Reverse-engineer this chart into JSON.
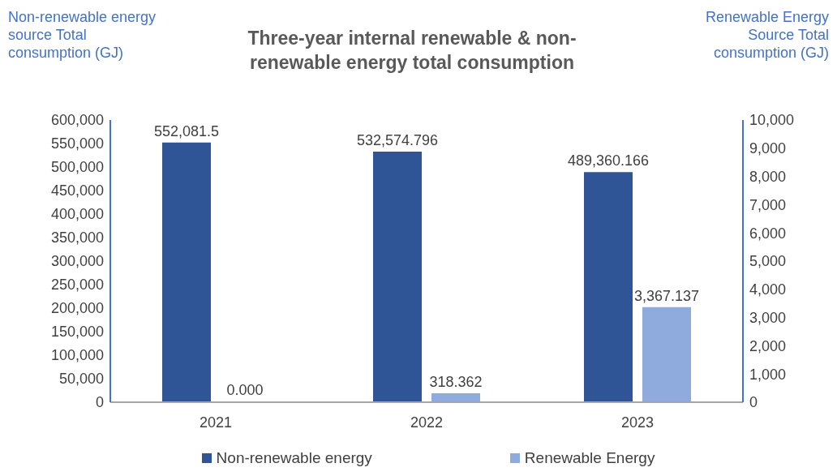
{
  "chart_data": {
    "type": "bar",
    "title": "Three-year internal renewable & non-renewable energy total consumption",
    "ylabel": "Non-renewable energy source Total consumption (GJ)",
    "y2label": "Renewable Energy Source Total consumption (GJ)",
    "categories": [
      "2021",
      "2022",
      "2023"
    ],
    "series": [
      {
        "name": "Non-renewable energy",
        "color": "#2f5597",
        "values": [
          552081.5,
          532574.796,
          489360.166
        ],
        "value_labels": [
          "552,081.5",
          "532,574.796",
          "489,360.166"
        ]
      },
      {
        "name": "Renewable Energy",
        "color": "#8faadc",
        "axis": "y2",
        "values": [
          0,
          318.362,
          3367.137
        ],
        "value_labels": [
          "0.000",
          "318.362",
          "3,367.137"
        ]
      }
    ],
    "ylim": [
      0,
      600000
    ],
    "yticks": [
      0,
      {
        "value": 50000,
        "label": "50,000"
      },
      {
        "value": 100000,
        "label": "100,000"
      },
      {
        "value": 150000,
        "label": "150,000"
      },
      {
        "value": 200000,
        "label": "200,000"
      },
      {
        "value": 250000,
        "label": "250,000"
      },
      {
        "value": 300000,
        "label": "300,000"
      },
      {
        "value": 350000,
        "label": "350,000"
      },
      {
        "value": 400000,
        "label": "400,000"
      },
      {
        "value": 450000,
        "label": "450,000"
      },
      {
        "value": 500000,
        "label": "500,000"
      },
      {
        "value": 550000,
        "label": "550,000"
      },
      {
        "value": 600000,
        "label": "600,000"
      }
    ],
    "y2lim": [
      0,
      10000
    ],
    "y2ticks": [
      0,
      {
        "value": 1000,
        "label": "1,000"
      },
      {
        "value": 2000,
        "label": "2,000"
      },
      {
        "value": 3000,
        "label": "3,000"
      },
      {
        "value": 4000,
        "label": "4,000"
      },
      {
        "value": 5000,
        "label": "5,000"
      },
      {
        "value": 6000,
        "label": "6,000"
      },
      {
        "value": 7000,
        "label": "7,000"
      },
      {
        "value": 8000,
        "label": "8,000"
      },
      {
        "value": 9000,
        "label": "9,000"
      },
      {
        "value": 10000,
        "label": "10,000"
      }
    ],
    "legend": "bottom",
    "grid": false
  }
}
